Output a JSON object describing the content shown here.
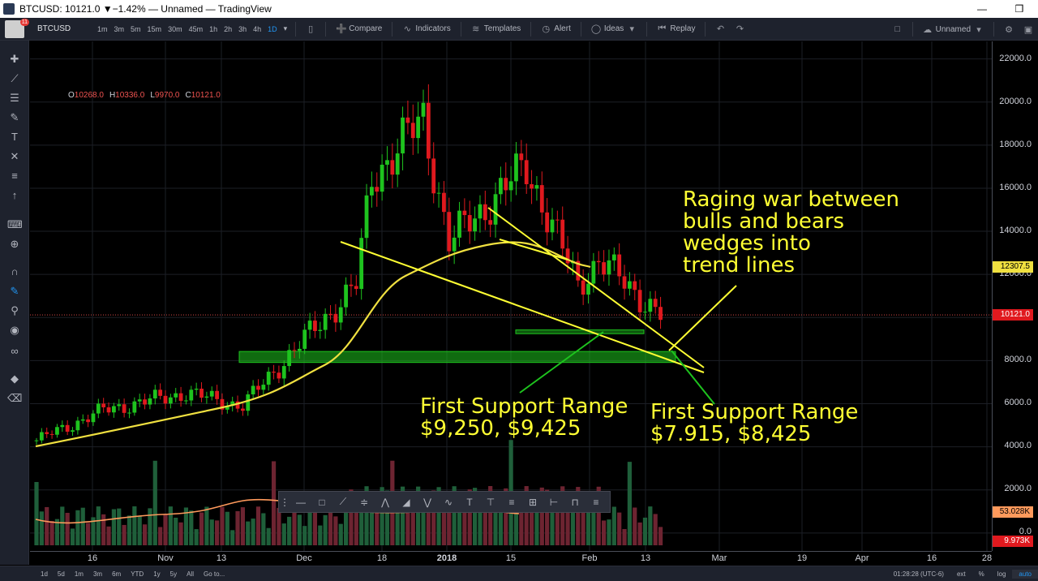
{
  "window": {
    "title": "BTCUSD: 10121.0 ▼−1.42% — Unnamed — TradingView",
    "minimize": "—",
    "restore": "❒"
  },
  "toolbar": {
    "avatar_badge": "11",
    "symbol": "BTCUSD",
    "timeframes": [
      "1m",
      "3m",
      "5m",
      "15m",
      "30m",
      "45m",
      "1h",
      "2h",
      "3h",
      "4h",
      "1D"
    ],
    "compare": "Compare",
    "indicators": "Indicators",
    "templates": "Templates",
    "alert": "Alert",
    "ideas": "Ideas",
    "replay": "Replay",
    "layout_name": "Unnamed"
  },
  "ohlc": {
    "o_key": "O",
    "o": "10268.0",
    "h_key": "H",
    "h": "10336.0",
    "l_key": "L",
    "l": "9970.0",
    "c_key": "C",
    "c": "10121.0"
  },
  "price_axis": {
    "ticks": [
      "22000.0",
      "20000.0",
      "18000.0",
      "16000.0",
      "14000.0",
      "12000.0",
      "8000.0",
      "6000.0",
      "4000.0",
      "2000.0",
      "0.0"
    ],
    "ma_label": "12307.5",
    "last_price": "10121.0",
    "volume_ma": "53.028K",
    "volume_last": "9.973K"
  },
  "time_axis": {
    "ticks": [
      {
        "label": "16",
        "major": false
      },
      {
        "label": "Nov",
        "major": false
      },
      {
        "label": "13",
        "major": false
      },
      {
        "label": "Dec",
        "major": false
      },
      {
        "label": "18",
        "major": false
      },
      {
        "label": "2018",
        "major": true
      },
      {
        "label": "15",
        "major": false
      },
      {
        "label": "Feb",
        "major": false
      },
      {
        "label": "13",
        "major": false
      },
      {
        "label": "Mar",
        "major": false
      },
      {
        "label": "19",
        "major": false
      },
      {
        "label": "Apr",
        "major": false
      },
      {
        "label": "16",
        "major": false
      },
      {
        "label": "28",
        "major": false
      }
    ]
  },
  "annotations": {
    "war_line1": "Raging war between",
    "war_line2": "bulls and bears",
    "war_line3": "wedges into",
    "war_line4": "trend lines",
    "support1_line1": "First Support Range",
    "support1_line2": "$9,250, $9,425",
    "support2_line1": "First Support Range",
    "support2_line2": "$7.915, $8,425"
  },
  "bottom": {
    "ranges": [
      "1d",
      "5d",
      "1m",
      "3m",
      "6m",
      "YTD",
      "1y",
      "5y",
      "All",
      "Go to..."
    ],
    "clock": "01:28:28 (UTC-6)",
    "ext": "ext",
    "pct": "%",
    "log": "log",
    "auto": "auto"
  },
  "colors": {
    "up": "#1ec31e",
    "down": "#e0191e",
    "annotation": "#ffff33",
    "ma": "#f0e040",
    "volume_ma": "#ff9a5c",
    "support_zone": "#1ec31e"
  },
  "chart_data": {
    "type": "candlestick",
    "symbol": "BTCUSD",
    "interval": "1D",
    "price_range": [
      0,
      23000
    ],
    "support_ranges": [
      [
        9250,
        9425
      ],
      [
        7915,
        8425
      ]
    ],
    "ma_last": 12307.5,
    "last_price": 10121.0,
    "price_path": [
      {
        "date": "2017-10-03",
        "close": 4300
      },
      {
        "date": "2017-10-16",
        "close": 5700
      },
      {
        "date": "2017-11-01",
        "close": 6500
      },
      {
        "date": "2017-11-12",
        "close": 5900
      },
      {
        "date": "2017-11-20",
        "close": 8000
      },
      {
        "date": "2017-12-04",
        "close": 11500
      },
      {
        "date": "2017-12-07",
        "close": 16500
      },
      {
        "date": "2017-12-17",
        "close": 19200
      },
      {
        "date": "2017-12-22",
        "close": 13500
      },
      {
        "date": "2018-01-06",
        "close": 17000
      },
      {
        "date": "2018-01-16",
        "close": 11500
      },
      {
        "date": "2018-01-20",
        "close": 12700
      },
      {
        "date": "2018-02-01",
        "close": 10121
      }
    ]
  }
}
